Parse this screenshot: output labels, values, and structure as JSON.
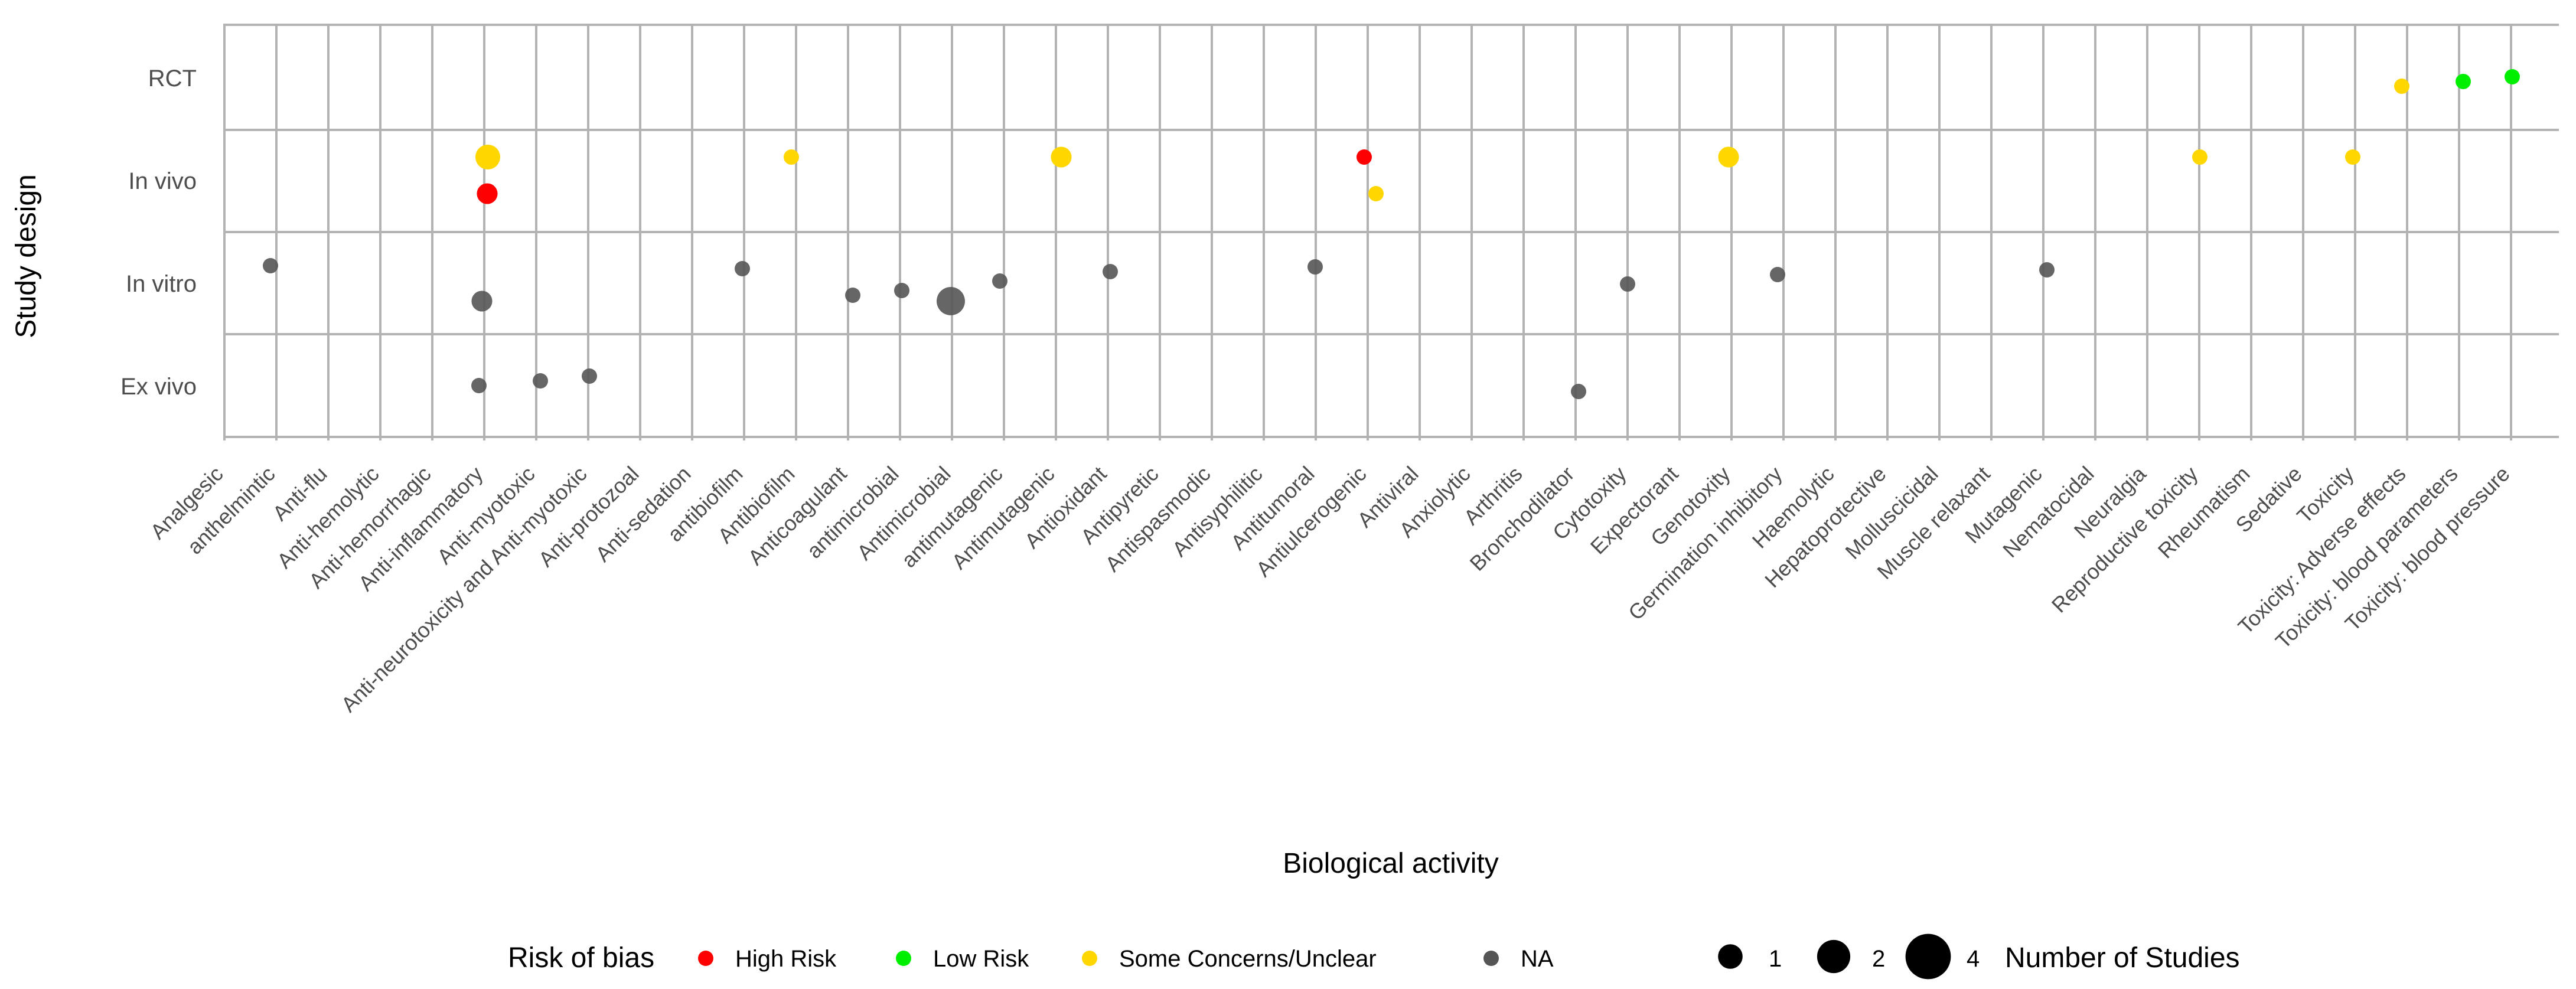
{
  "chart_data": {
    "type": "scatter",
    "xlabel": "Biological activity",
    "ylabel": "Study design",
    "categories": [
      "Analgesic",
      "anthelmintic",
      "Anti-flu",
      "Anti-hemolytic",
      "Anti-hemorrhagic",
      "Anti-inflammatory",
      "Anti-myotoxic",
      "Anti-neurotoxicity and Anti-myotoxic",
      "Anti-protozoal",
      "Anti-sedation",
      "antibiofilm",
      "Antibiofilm",
      "Anticoagulant",
      "antimicrobial",
      "Antimicrobial",
      "antimutagenic",
      "Antimutagenic",
      "Antioxidant",
      "Antipyretic",
      "Antispasmodic",
      "Antisyphilitic",
      "Antitumoral",
      "Antiulcerogenic",
      "Antiviral",
      "Anxiolytic",
      "Arthritis",
      "Bronchodilator",
      "Cytotoxity",
      "Expectorant",
      "Genotoxity",
      "Germination inhibitory",
      "Haemolytic",
      "Hepatoprotective",
      "Molluscicidal",
      "Muscle relaxant",
      "Mutagenic",
      "Nematocidal",
      "Neuralgia",
      "Reproductive toxicity",
      "Rheumatism",
      "Sedative",
      "Toxicity",
      "Toxicity: Adverse effects",
      "Toxicity: blood parameters",
      "Toxicity: blood pressure"
    ],
    "y_categories": [
      "Ex vivo",
      "In vitro",
      "In vivo",
      "RCT"
    ],
    "color_legend": {
      "title": "Risk of bias",
      "entries": [
        {
          "label": "High Risk",
          "color": "#ff0000"
        },
        {
          "label": "Low Risk",
          "color": "#00ee00"
        },
        {
          "label": "Some Concerns/Unclear",
          "color": "#ffd700"
        },
        {
          "label": "NA",
          "color": "#555555"
        }
      ]
    },
    "size_legend": {
      "title": "Number of Studies",
      "entries": [
        {
          "label": "1",
          "value": 1
        },
        {
          "label": "2",
          "value": 2
        },
        {
          "label": "4",
          "value": 4
        }
      ]
    },
    "legend_position": "bottom",
    "grid": true,
    "points": [
      {
        "x": "anthelmintic",
        "y": "In vitro",
        "size": 1,
        "bias": "NA"
      },
      {
        "x": "Anti-inflammatory",
        "y": "In vivo",
        "size": 3,
        "bias": "Some Concerns/Unclear"
      },
      {
        "x": "Anti-inflammatory",
        "y": "In vivo",
        "size": 2,
        "bias": "High Risk"
      },
      {
        "x": "Anti-inflammatory",
        "y": "In vitro",
        "size": 2,
        "bias": "NA"
      },
      {
        "x": "Anti-inflammatory",
        "y": "Ex vivo",
        "size": 1,
        "bias": "NA"
      },
      {
        "x": "Anti-myotoxic",
        "y": "Ex vivo",
        "size": 1,
        "bias": "NA"
      },
      {
        "x": "Anti-neurotoxicity and Anti-myotoxic",
        "y": "Ex vivo",
        "size": 1,
        "bias": "NA"
      },
      {
        "x": "antibiofilm",
        "y": "In vitro",
        "size": 1,
        "bias": "NA"
      },
      {
        "x": "Antibiofilm",
        "y": "In vivo",
        "size": 1,
        "bias": "Some Concerns/Unclear"
      },
      {
        "x": "Anticoagulant",
        "y": "In vitro",
        "size": 1,
        "bias": "NA"
      },
      {
        "x": "antimicrobial",
        "y": "In vitro",
        "size": 1,
        "bias": "NA"
      },
      {
        "x": "Antimicrobial",
        "y": "In vitro",
        "size": 4,
        "bias": "NA"
      },
      {
        "x": "antimutagenic",
        "y": "In vitro",
        "size": 1,
        "bias": "NA"
      },
      {
        "x": "Antimutagenic",
        "y": "In vivo",
        "size": 2,
        "bias": "Some Concerns/Unclear"
      },
      {
        "x": "Antioxidant",
        "y": "In vitro",
        "size": 1,
        "bias": "NA"
      },
      {
        "x": "Antitumoral",
        "y": "In vitro",
        "size": 1,
        "bias": "NA"
      },
      {
        "x": "Antiulcerogenic",
        "y": "In vivo",
        "size": 1,
        "bias": "High Risk"
      },
      {
        "x": "Antiulcerogenic",
        "y": "In vivo",
        "size": 1,
        "bias": "Some Concerns/Unclear"
      },
      {
        "x": "Bronchodilator",
        "y": "Ex vivo",
        "size": 1,
        "bias": "NA"
      },
      {
        "x": "Cytotoxity",
        "y": "In vitro",
        "size": 1,
        "bias": "NA"
      },
      {
        "x": "Genotoxity",
        "y": "In vivo",
        "size": 2,
        "bias": "Some Concerns/Unclear"
      },
      {
        "x": "Germination inhibitory",
        "y": "In vitro",
        "size": 1,
        "bias": "NA"
      },
      {
        "x": "Mutagenic",
        "y": "In vitro",
        "size": 1,
        "bias": "NA"
      },
      {
        "x": "Reproductive toxicity",
        "y": "In vivo",
        "size": 1,
        "bias": "Some Concerns/Unclear"
      },
      {
        "x": "Toxicity",
        "y": "In vivo",
        "size": 1,
        "bias": "Some Concerns/Unclear"
      },
      {
        "x": "Toxicity: Adverse effects",
        "y": "RCT",
        "size": 1,
        "bias": "Some Concerns/Unclear"
      },
      {
        "x": "Toxicity: blood parameters",
        "y": "RCT",
        "size": 1,
        "bias": "Low Risk"
      },
      {
        "x": "Toxicity: blood pressure",
        "y": "RCT",
        "size": 1,
        "bias": "Low Risk"
      }
    ]
  }
}
